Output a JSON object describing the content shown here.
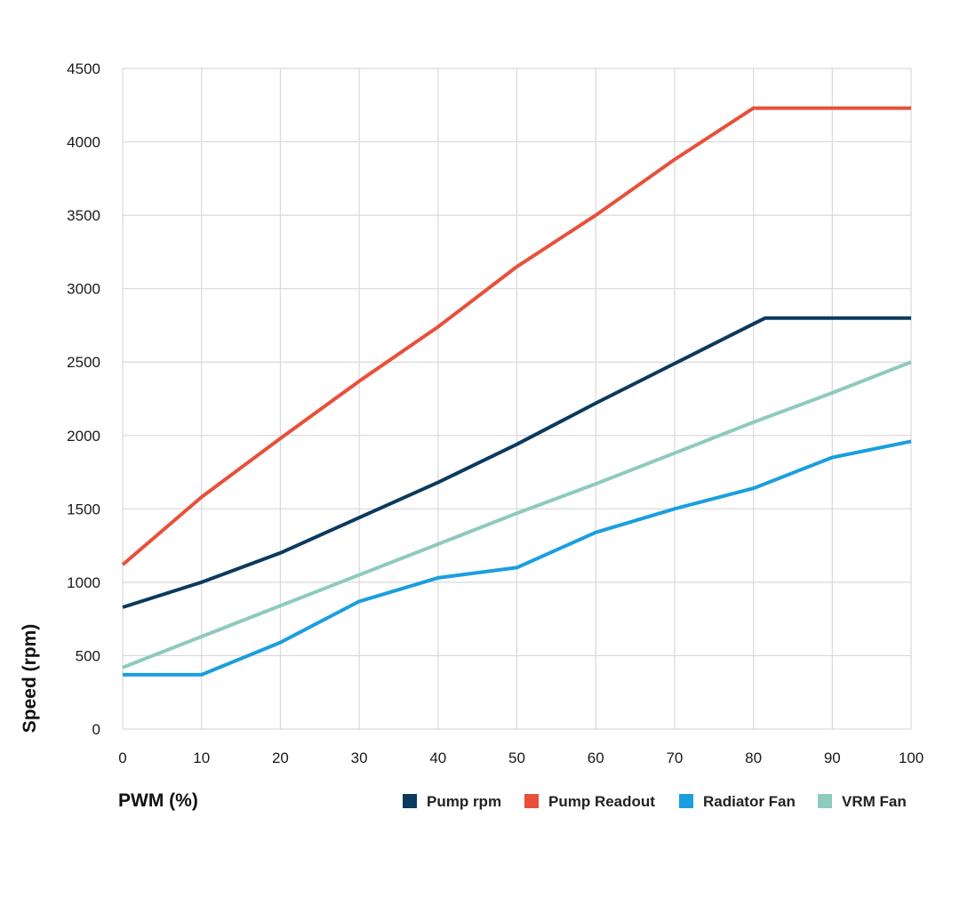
{
  "chart_data": {
    "type": "line",
    "title": "",
    "xlabel": "PWM (%)",
    "ylabel": "Speed (rpm)",
    "xlim": [
      0,
      100
    ],
    "ylim": [
      0,
      4500
    ],
    "x_ticks": [
      0,
      10,
      20,
      30,
      40,
      50,
      60,
      70,
      80,
      90,
      100
    ],
    "y_ticks": [
      0,
      500,
      1000,
      1500,
      2000,
      2500,
      3000,
      3500,
      4000,
      4500
    ],
    "grid": true,
    "legend": "bottom-right",
    "series": [
      {
        "name": "Pump rpm",
        "color": "#0a3a5e",
        "x": [
          0,
          10,
          20,
          30,
          40,
          50,
          60,
          70,
          80,
          81.5,
          90,
          100
        ],
        "y": [
          830,
          1000,
          1200,
          1440,
          1680,
          1940,
          2220,
          2490,
          2760,
          2800,
          2800,
          2800
        ]
      },
      {
        "name": "Pump Readout",
        "color": "#e8503a",
        "x": [
          0,
          10,
          20,
          30,
          40,
          50,
          60,
          70,
          80,
          90,
          100
        ],
        "y": [
          1120,
          1580,
          1980,
          2370,
          2740,
          3150,
          3500,
          3880,
          4230,
          4230,
          4230
        ]
      },
      {
        "name": "Radiator Fan",
        "color": "#1a9ee0",
        "x": [
          0,
          10,
          20,
          30,
          40,
          50,
          60,
          70,
          80,
          90,
          100
        ],
        "y": [
          370,
          370,
          590,
          870,
          1030,
          1100,
          1340,
          1500,
          1640,
          1850,
          1960
        ]
      },
      {
        "name": "VRM Fan",
        "color": "#8ccbbd",
        "x": [
          0,
          10,
          20,
          30,
          40,
          50,
          60,
          70,
          80,
          90,
          100
        ],
        "y": [
          420,
          630,
          840,
          1050,
          1260,
          1470,
          1670,
          1880,
          2090,
          2290,
          2500
        ]
      }
    ]
  }
}
